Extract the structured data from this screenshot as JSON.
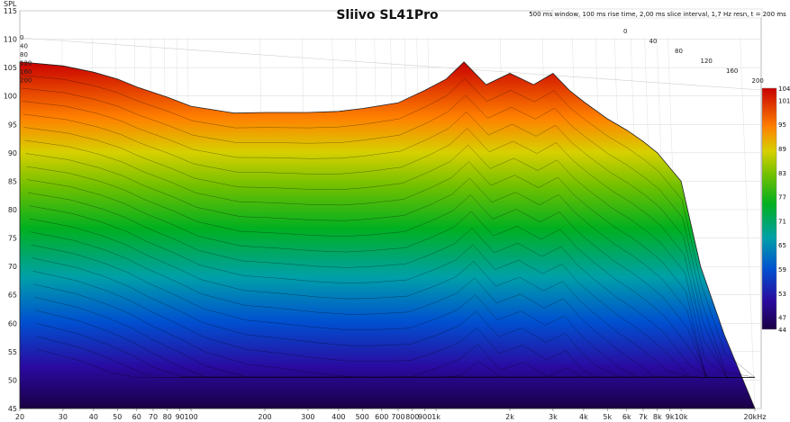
{
  "chart_data": {
    "type": "area",
    "title": "Sliivo SL41Pro",
    "subtitle": "500 ms window, 100 ms rise time, 2,00 ms slice interval, 1,7 Hz resn, t = 200 ms",
    "ylabel": "SPL",
    "ylim": [
      45,
      115
    ],
    "y_ticks": [
      "45",
      "50",
      "55",
      "60",
      "65",
      "70",
      "75",
      "80",
      "85",
      "90",
      "95",
      "100",
      "105",
      "110",
      "115"
    ],
    "x_scale": "log",
    "xlim": [
      20,
      20000
    ],
    "x_ticks": [
      {
        "v": 20,
        "label": "20"
      },
      {
        "v": 30,
        "label": "30"
      },
      {
        "v": 40,
        "label": "40"
      },
      {
        "v": 50,
        "label": "50"
      },
      {
        "v": 60,
        "label": "60"
      },
      {
        "v": 70,
        "label": "70"
      },
      {
        "v": 80,
        "label": "80"
      },
      {
        "v": 90,
        "label": "90"
      },
      {
        "v": 100,
        "label": "100"
      },
      {
        "v": 200,
        "label": "200"
      },
      {
        "v": 300,
        "label": "300"
      },
      {
        "v": 400,
        "label": "400"
      },
      {
        "v": 500,
        "label": "500"
      },
      {
        "v": 600,
        "label": "600"
      },
      {
        "v": 700,
        "label": "700"
      },
      {
        "v": 800,
        "label": "800"
      },
      {
        "v": 900,
        "label": "900"
      },
      {
        "v": 1000,
        "label": "1k"
      },
      {
        "v": 2000,
        "label": "2k"
      },
      {
        "v": 3000,
        "label": "3k"
      },
      {
        "v": 4000,
        "label": "4k"
      },
      {
        "v": 5000,
        "label": "5k"
      },
      {
        "v": 6000,
        "label": "6k"
      },
      {
        "v": 7000,
        "label": "7k"
      },
      {
        "v": 8000,
        "label": "8k"
      },
      {
        "v": 9000,
        "label": "9k"
      },
      {
        "v": 10000,
        "label": "10k"
      },
      {
        "v": 20000,
        "label": "20kHz"
      }
    ],
    "time_ticks_ms": [
      "0",
      "40",
      "80",
      "120",
      "160",
      "200"
    ],
    "colorbar": {
      "min": 44,
      "max": 104,
      "ticks": [
        "44",
        "47",
        "53",
        "59",
        "65",
        "71",
        "77",
        "83",
        "89",
        "95",
        "101",
        "104"
      ]
    },
    "frequency_response_t0": [
      {
        "x": 20,
        "y": 106.0
      },
      {
        "x": 30,
        "y": 105.3
      },
      {
        "x": 40,
        "y": 104.2
      },
      {
        "x": 50,
        "y": 103.0
      },
      {
        "x": 60,
        "y": 101.6
      },
      {
        "x": 80,
        "y": 99.8
      },
      {
        "x": 100,
        "y": 98.2
      },
      {
        "x": 150,
        "y": 97.0
      },
      {
        "x": 200,
        "y": 97.1
      },
      {
        "x": 300,
        "y": 97.1
      },
      {
        "x": 400,
        "y": 97.3
      },
      {
        "x": 500,
        "y": 97.8
      },
      {
        "x": 700,
        "y": 98.8
      },
      {
        "x": 900,
        "y": 101.0
      },
      {
        "x": 1100,
        "y": 103.0
      },
      {
        "x": 1300,
        "y": 106.0
      },
      {
        "x": 1600,
        "y": 102.0
      },
      {
        "x": 2000,
        "y": 104.0
      },
      {
        "x": 2500,
        "y": 102.0
      },
      {
        "x": 3000,
        "y": 104.0
      },
      {
        "x": 3500,
        "y": 101.0
      },
      {
        "x": 4000,
        "y": 99.0
      },
      {
        "x": 5000,
        "y": 96.0
      },
      {
        "x": 6000,
        "y": 94.0
      },
      {
        "x": 7000,
        "y": 92.0
      },
      {
        "x": 8000,
        "y": 90.0
      },
      {
        "x": 10000,
        "y": 85.0
      },
      {
        "x": 12000,
        "y": 70.0
      },
      {
        "x": 15000,
        "y": 58.0
      },
      {
        "x": 20000,
        "y": 45.0
      }
    ]
  }
}
